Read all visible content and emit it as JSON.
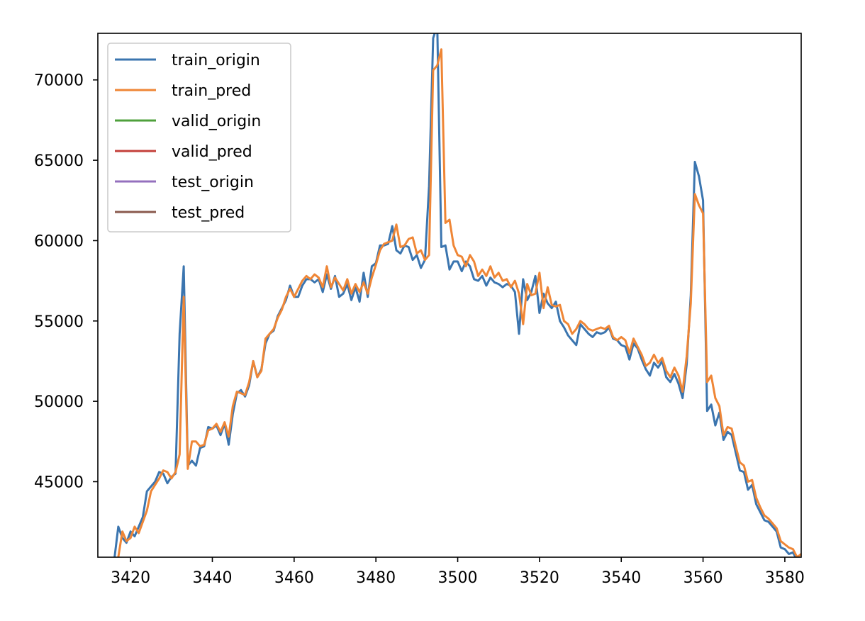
{
  "chart_data": {
    "type": "line",
    "title": "",
    "xlabel": "",
    "ylabel": "",
    "xlim": [
      3412,
      3584
    ],
    "ylim": [
      40300,
      72900
    ],
    "xticks": [
      3420,
      3440,
      3460,
      3480,
      3500,
      3520,
      3540,
      3560,
      3580
    ],
    "yticks": [
      45000,
      50000,
      55000,
      60000,
      65000,
      70000
    ],
    "legend_position": "upper-left",
    "x_start": 3416,
    "series": [
      {
        "name": "train_origin",
        "color": "#3b75af",
        "values": [
          40100,
          42200,
          41500,
          41200,
          41900,
          41600,
          42200,
          42800,
          44400,
          44700,
          45000,
          45600,
          45500,
          44900,
          45300,
          45500,
          54200,
          58400,
          46000,
          46300,
          46000,
          47100,
          47200,
          48400,
          48300,
          48500,
          47900,
          48600,
          47300,
          49200,
          50500,
          50700,
          50300,
          51000,
          52500,
          51500,
          52000,
          53600,
          54200,
          54400,
          55300,
          55800,
          56300,
          57200,
          56500,
          56500,
          57200,
          57600,
          57600,
          57400,
          57600,
          56800,
          57900,
          57000,
          57800,
          56500,
          56700,
          57300,
          56300,
          57100,
          56200,
          58000,
          56500,
          58400,
          58600,
          59700,
          59700,
          59800,
          60900,
          59400,
          59200,
          59700,
          59600,
          58800,
          59100,
          58300,
          58800,
          63400,
          72600,
          73400,
          59600,
          59700,
          58200,
          58700,
          58700,
          58100,
          58700,
          58400,
          57600,
          57500,
          57800,
          57200,
          57700,
          57400,
          57300,
          57100,
          57300,
          57200,
          56800,
          54200,
          57600,
          56300,
          56800,
          57800,
          55500,
          56700,
          56100,
          55800,
          56200,
          55000,
          54600,
          54100,
          53800,
          53500,
          54800,
          54500,
          54200,
          54000,
          54300,
          54200,
          54300,
          54600,
          53900,
          53800,
          53500,
          53400,
          52600,
          53600,
          53300,
          52600,
          52000,
          51600,
          52400,
          52100,
          52500,
          51500,
          51200,
          51700,
          51100,
          50200,
          52300,
          56600,
          64900,
          64000,
          62500,
          49400,
          49800,
          48500,
          49300,
          47600,
          48100,
          47900,
          46800,
          45700,
          45600,
          44500,
          44800,
          43600,
          43100,
          42600,
          42500,
          42200,
          41900,
          40900,
          40800,
          40500,
          40600,
          40100,
          40000
        ]
      },
      {
        "name": "train_pred",
        "color": "#ef8636",
        "values": [
          null,
          40300,
          41900,
          41300,
          41500,
          42200,
          41800,
          42500,
          43200,
          44400,
          44800,
          45200,
          45700,
          45600,
          45200,
          45600,
          46700,
          56500,
          45800,
          47500,
          47500,
          47200,
          47300,
          48200,
          48300,
          48600,
          48100,
          48700,
          47800,
          49700,
          50600,
          50500,
          50400,
          51200,
          52500,
          51500,
          51900,
          53900,
          54200,
          54500,
          55200,
          55700,
          56500,
          57000,
          56500,
          57000,
          57500,
          57800,
          57600,
          57900,
          57700,
          57100,
          58400,
          57100,
          57700,
          57300,
          56900,
          57600,
          56700,
          57300,
          56800,
          57400,
          56700,
          57700,
          58500,
          59400,
          59800,
          59900,
          60000,
          61000,
          59600,
          59700,
          60100,
          60200,
          59200,
          59400,
          58800,
          59100,
          70600,
          70900,
          71900,
          61100,
          61300,
          59700,
          59100,
          59000,
          58400,
          59100,
          58700,
          57800,
          58200,
          57800,
          58400,
          57700,
          58000,
          57500,
          57600,
          57100,
          57500,
          56700,
          54800,
          57300,
          56600,
          56700,
          58000,
          55800,
          57100,
          56000,
          55900,
          56000,
          55000,
          54800,
          54200,
          54500,
          55000,
          54800,
          54500,
          54400,
          54500,
          54600,
          54500,
          54700,
          54000,
          53800,
          54000,
          53800,
          53000,
          53900,
          53400,
          52900,
          52200,
          52400,
          52900,
          52400,
          52700,
          51900,
          51500,
          52100,
          51600,
          50600,
          52800,
          56100,
          62900,
          62200,
          61700,
          51200,
          51600,
          50200,
          49700,
          47900,
          48400,
          48300,
          47200,
          46200,
          46000,
          45000,
          45100,
          44000,
          43400,
          42900,
          42700,
          42400,
          42100,
          41300,
          41100,
          40900,
          40800,
          40300,
          40500
        ]
      },
      {
        "name": "valid_origin",
        "color": "#4fa03c",
        "values": []
      },
      {
        "name": "valid_pred",
        "color": "#c4403a",
        "values": []
      },
      {
        "name": "test_origin",
        "color": "#9470be",
        "values": []
      },
      {
        "name": "test_pred",
        "color": "#8a5a4d",
        "values": []
      }
    ]
  }
}
